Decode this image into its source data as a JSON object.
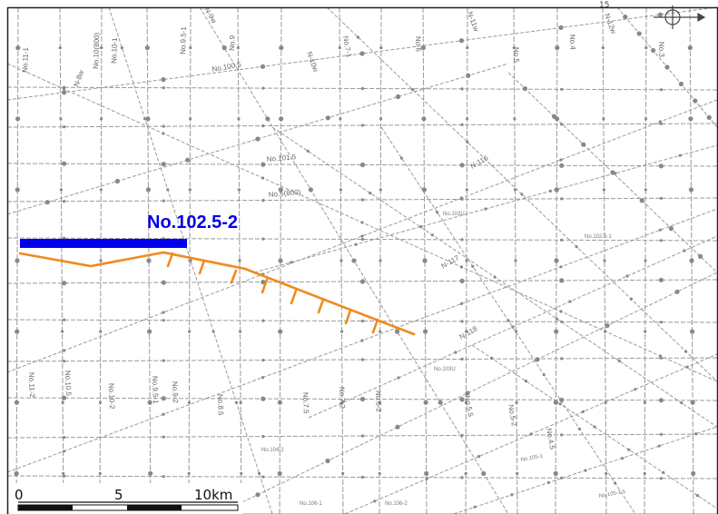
{
  "highlight_label": "No.102.5-2",
  "corner_text": "15",
  "scale_labels": {
    "zero": "0",
    "five": "5",
    "ten": "10km"
  },
  "colors": {
    "highlight": "#0000ee",
    "fault": "#f08a1e",
    "grid": "#9a9a9a",
    "frame": "#222222"
  },
  "survey_lines_top": [
    "No.11-1",
    "No.10(800)",
    "No.10-1",
    "No.9.5-1",
    "N-9w",
    "No.9",
    "N-10w",
    "No.7-1",
    "No.6",
    "N-11w",
    "No.5",
    "No.4",
    "N-12w",
    "No.3"
  ],
  "survey_lines_left": [
    "N-8w"
  ],
  "survey_lines_bottom": [
    "No.11-2",
    "No.10.5",
    "No.10-2",
    "No.9.5-1",
    "No.9-2",
    "No.8.5",
    "No.7.5",
    "No.7-2",
    "No.6-2",
    "No.5.5",
    "No.5-2",
    "No.4.5"
  ],
  "survey_lines_cross": [
    "No.100.5",
    "No.101.5",
    "No.5(800)",
    "No.102U",
    "No.102.5-1",
    "N-116",
    "N-117",
    "N-118",
    "No.103U",
    "No.105-1",
    "No.105-1.5",
    "No.106-1",
    "No.106-2",
    "No.104-2"
  ]
}
